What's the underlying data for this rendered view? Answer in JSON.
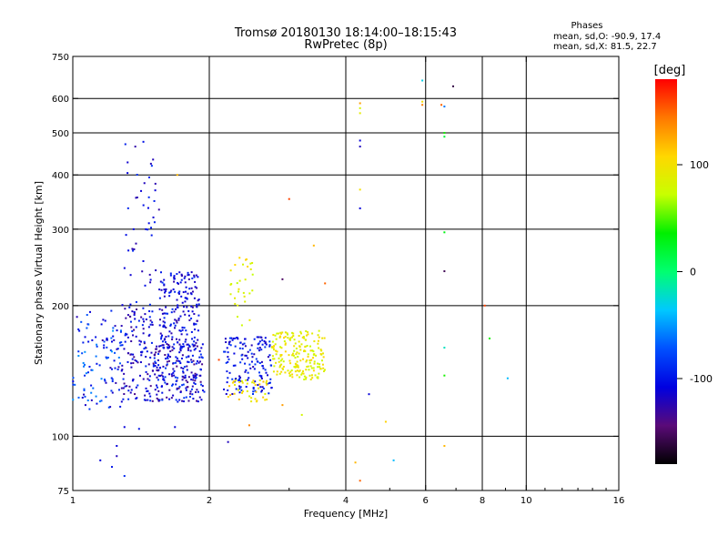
{
  "chart_data": {
    "type": "scatter",
    "title_line1": "Tromsø 20180130 18:14:00–18:15:43",
    "title_line2": "RwPretec (8p)",
    "stats": {
      "heading": "Phases",
      "line_o": "mean, sd,O: -90.9, 17.4",
      "line_x": "mean, sd,X:  81.5, 22.7"
    },
    "xlabel": "Frequency [MHz]",
    "ylabel": "Stationary phase Virtual Height [km]",
    "x_scale": "log",
    "y_scale": "log",
    "xlim": [
      1,
      16
    ],
    "ylim": [
      75,
      750
    ],
    "x_ticks": [
      {
        "value": 1,
        "label": "1"
      },
      {
        "value": 2,
        "label": "2"
      },
      {
        "value": 4,
        "label": "4"
      },
      {
        "value": 6,
        "label": "6"
      },
      {
        "value": 8,
        "label": "8"
      },
      {
        "value": 10,
        "label": "10"
      },
      {
        "value": 16,
        "label": "16"
      }
    ],
    "x_gridlines": [
      2,
      4,
      6,
      8,
      10
    ],
    "y_ticks": [
      {
        "value": 75,
        "label": "75"
      },
      {
        "value": 100,
        "label": "100"
      },
      {
        "value": 200,
        "label": "200"
      },
      {
        "value": 300,
        "label": "300"
      },
      {
        "value": 400,
        "label": "400"
      },
      {
        "value": 500,
        "label": "500"
      },
      {
        "value": 600,
        "label": "600"
      },
      {
        "value": 750,
        "label": "750"
      }
    ],
    "y_gridlines": [
      100,
      200,
      300,
      400,
      500,
      600
    ],
    "colorbar": {
      "unit_label": "[deg]",
      "range": [
        -180,
        180
      ],
      "ticks": [
        {
          "value": 100,
          "label": "100"
        },
        {
          "value": 0,
          "label": "0"
        },
        {
          "value": -100,
          "label": "-100"
        }
      ],
      "colormap": [
        "#000000",
        "#5a0a78",
        "#0000e0",
        "#0050ff",
        "#00c8ff",
        "#00ff70",
        "#00f000",
        "#c8ff00",
        "#ffd700",
        "#ff7800",
        "#ff0000"
      ]
    },
    "clusters": [
      {
        "x_range": [
          1.0,
          1.28
        ],
        "y_range": [
          115,
          195
        ],
        "phase_range": [
          -130,
          -50
        ],
        "count": 110
      },
      {
        "x_range": [
          1.28,
          1.5
        ],
        "y_range": [
          120,
          205
        ],
        "phase_range": [
          -140,
          -85
        ],
        "count": 130
      },
      {
        "x_range": [
          1.5,
          1.95
        ],
        "y_range": [
          120,
          165
        ],
        "phase_range": [
          -140,
          -80
        ],
        "count": 230
      },
      {
        "x_range": [
          1.55,
          1.9
        ],
        "y_range": [
          160,
          240
        ],
        "phase_range": [
          -130,
          -85
        ],
        "count": 180
      },
      {
        "x_range": [
          1.3,
          1.55
        ],
        "y_range": [
          220,
          480
        ],
        "phase_range": [
          -130,
          -85
        ],
        "count": 45
      },
      {
        "x_range": [
          2.15,
          2.75
        ],
        "y_range": [
          125,
          170
        ],
        "phase_range": [
          -125,
          -80
        ],
        "count": 150
      },
      {
        "x_range": [
          2.2,
          2.5
        ],
        "y_range": [
          175,
          260
        ],
        "phase_range": [
          70,
          110
        ],
        "count": 30
      },
      {
        "x_range": [
          2.2,
          2.7
        ],
        "y_range": [
          120,
          135
        ],
        "phase_range": [
          80,
          120
        ],
        "count": 40
      },
      {
        "x_range": [
          2.75,
          3.6
        ],
        "y_range": [
          135,
          175
        ],
        "phase_range": [
          70,
          110
        ],
        "count": 200
      }
    ],
    "sparse_points": [
      {
        "x": 4.3,
        "y": 585,
        "phase": 130
      },
      {
        "x": 4.3,
        "y": 570,
        "phase": 80
      },
      {
        "x": 4.3,
        "y": 555,
        "phase": 90
      },
      {
        "x": 4.3,
        "y": 480,
        "phase": -110
      },
      {
        "x": 4.3,
        "y": 465,
        "phase": -120
      },
      {
        "x": 4.3,
        "y": 370,
        "phase": 100
      },
      {
        "x": 4.3,
        "y": 335,
        "phase": -110
      },
      {
        "x": 4.5,
        "y": 125,
        "phase": -110
      },
      {
        "x": 4.2,
        "y": 87,
        "phase": 120
      },
      {
        "x": 4.3,
        "y": 79,
        "phase": 150
      },
      {
        "x": 4.9,
        "y": 108,
        "phase": 110
      },
      {
        "x": 5.1,
        "y": 88,
        "phase": -40
      },
      {
        "x": 5.9,
        "y": 660,
        "phase": -30
      },
      {
        "x": 5.9,
        "y": 590,
        "phase": 100
      },
      {
        "x": 5.9,
        "y": 580,
        "phase": 140
      },
      {
        "x": 6.5,
        "y": 580,
        "phase": 150
      },
      {
        "x": 6.6,
        "y": 575,
        "phase": -60
      },
      {
        "x": 6.6,
        "y": 500,
        "phase": 40
      },
      {
        "x": 6.6,
        "y": 490,
        "phase": 20
      },
      {
        "x": 6.6,
        "y": 295,
        "phase": 30
      },
      {
        "x": 6.6,
        "y": 240,
        "phase": -155
      },
      {
        "x": 6.6,
        "y": 160,
        "phase": -20
      },
      {
        "x": 6.6,
        "y": 138,
        "phase": 40
      },
      {
        "x": 6.6,
        "y": 95,
        "phase": 120
      },
      {
        "x": 6.9,
        "y": 640,
        "phase": -160
      },
      {
        "x": 8.1,
        "y": 200,
        "phase": 160
      },
      {
        "x": 8.3,
        "y": 168,
        "phase": 40
      },
      {
        "x": 9.1,
        "y": 136,
        "phase": -40
      },
      {
        "x": 3.4,
        "y": 275,
        "phase": 120
      },
      {
        "x": 3.6,
        "y": 225,
        "phase": 150
      },
      {
        "x": 3.0,
        "y": 352,
        "phase": 160
      },
      {
        "x": 2.9,
        "y": 230,
        "phase": -150
      },
      {
        "x": 1.7,
        "y": 400,
        "phase": 120
      },
      {
        "x": 1.25,
        "y": 95,
        "phase": -110
      },
      {
        "x": 1.25,
        "y": 90,
        "phase": -120
      },
      {
        "x": 1.22,
        "y": 85,
        "phase": -100
      },
      {
        "x": 1.3,
        "y": 81,
        "phase": -90
      },
      {
        "x": 1.15,
        "y": 88,
        "phase": -110
      },
      {
        "x": 1.3,
        "y": 105,
        "phase": -110
      },
      {
        "x": 1.4,
        "y": 104,
        "phase": -100
      },
      {
        "x": 1.68,
        "y": 105,
        "phase": -110
      },
      {
        "x": 2.2,
        "y": 97,
        "phase": -120
      },
      {
        "x": 2.45,
        "y": 106,
        "phase": 140
      },
      {
        "x": 2.9,
        "y": 118,
        "phase": 130
      },
      {
        "x": 3.2,
        "y": 112,
        "phase": 80
      },
      {
        "x": 2.1,
        "y": 150,
        "phase": 160
      }
    ]
  }
}
